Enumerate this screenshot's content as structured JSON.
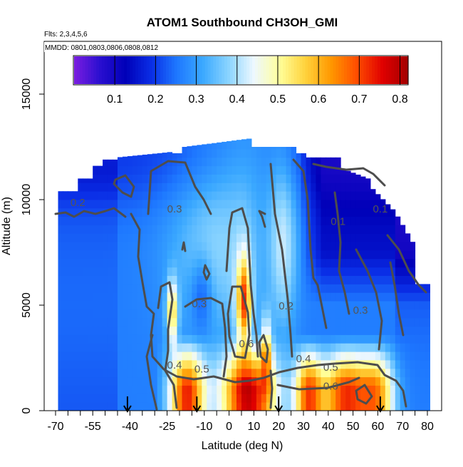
{
  "chart_data": {
    "type": "heatmap",
    "title": "ATOM1 Southbound CH3OH_GMI",
    "flights_note": "Flts: 2,3,4,5,6",
    "dates_note": "MMDD: 0801,0803,0806,0808,0812",
    "xlabel": "Latitude (deg N)",
    "ylabel": "Altitude (m)",
    "xlim": [
      -70,
      80
    ],
    "ylim": [
      0,
      17500
    ],
    "x_ticks": [
      -70,
      -55,
      -40,
      -25,
      -10,
      0,
      10,
      20,
      30,
      40,
      50,
      60,
      70,
      80
    ],
    "y_ticks": [
      0,
      5000,
      10000,
      15000
    ],
    "colorbar": {
      "min": 0.0,
      "max": 0.82,
      "ticks": [
        0.1,
        0.2,
        0.3,
        0.4,
        0.5,
        0.6,
        0.7,
        0.8
      ],
      "colors": [
        "#7b1de0",
        "#2a0fd0",
        "#0000b8",
        "#0a2ee6",
        "#1e78ff",
        "#3aa8ff",
        "#8ad4ff",
        "#eef8ff",
        "#ffff9a",
        "#ffd23c",
        "#ff9800",
        "#ff4d00",
        "#e00000",
        "#a20000"
      ]
    },
    "contour_labels": [
      {
        "text": "0.2",
        "lat": -61,
        "alt": 9700
      },
      {
        "text": "0.3",
        "lat": -22,
        "alt": 9400
      },
      {
        "text": "0.3",
        "lat": -12,
        "alt": 4900
      },
      {
        "text": "0.4",
        "lat": -22,
        "alt": 2000
      },
      {
        "text": "0.5",
        "lat": -11,
        "alt": 1800
      },
      {
        "text": "0.6",
        "lat": 7,
        "alt": 3000
      },
      {
        "text": "0.2",
        "lat": 23,
        "alt": 4800
      },
      {
        "text": "0.4",
        "lat": 30,
        "alt": 2300
      },
      {
        "text": "0.5",
        "lat": 41,
        "alt": 1900
      },
      {
        "text": "0.6",
        "lat": 41,
        "alt": 1000
      },
      {
        "text": "0.3",
        "lat": 53,
        "alt": 4600
      },
      {
        "text": "0.1",
        "lat": 44,
        "alt": 8800
      },
      {
        "text": "0.1",
        "lat": 61,
        "alt": 9400
      }
    ],
    "flight_markers_lat": [
      -41,
      -13,
      20,
      61
    ]
  }
}
